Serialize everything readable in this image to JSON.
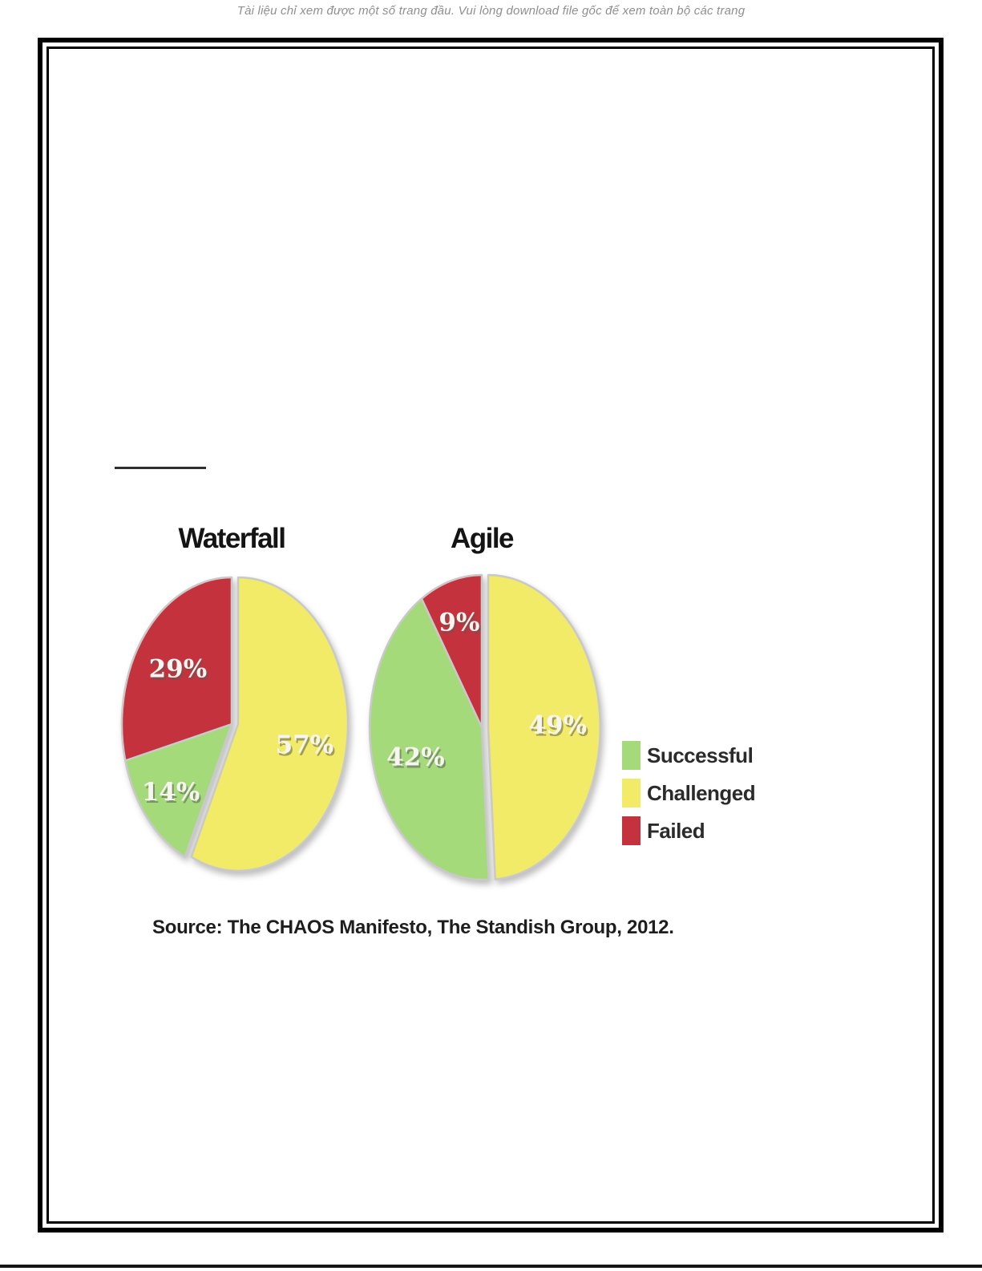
{
  "header": {
    "notice": "Tài liệu chỉ xem được một số trang đầu. Vui lòng download file gốc để xem toàn bộ các trang"
  },
  "chart_data": [
    {
      "type": "pie",
      "title": "Waterfall",
      "value_label_format": "percent",
      "slices": [
        {
          "label": "Challenged",
          "value": 57,
          "color": "#f2eb67",
          "exploded": true
        },
        {
          "label": "Successful",
          "value": 14,
          "color": "#a5da7b",
          "exploded": false
        },
        {
          "label": "Failed",
          "value": 29,
          "color": "#c4323d",
          "exploded": false
        }
      ]
    },
    {
      "type": "pie",
      "title": "Agile",
      "value_label_format": "percent",
      "slices": [
        {
          "label": "Challenged",
          "value": 49,
          "color": "#f2eb67",
          "exploded": true
        },
        {
          "label": "Successful",
          "value": 42,
          "color": "#a5da7b",
          "exploded": false
        },
        {
          "label": "Failed",
          "value": 9,
          "color": "#c4323d",
          "exploded": false
        }
      ]
    }
  ],
  "legend": {
    "position": "right",
    "items": [
      {
        "label": "Successful",
        "color": "#a5da7b"
      },
      {
        "label": "Challenged",
        "color": "#f2eb67"
      },
      {
        "label": "Failed",
        "color": "#c4323d"
      }
    ]
  },
  "source": {
    "text": "Source: The CHAOS Manifesto, The Standish Group, 2012."
  },
  "colors": {
    "successful": "#a5da7b",
    "challenged": "#f2eb67",
    "failed": "#c4323d",
    "slice_seam": "#c9c9c9",
    "page_border": "#000000"
  }
}
